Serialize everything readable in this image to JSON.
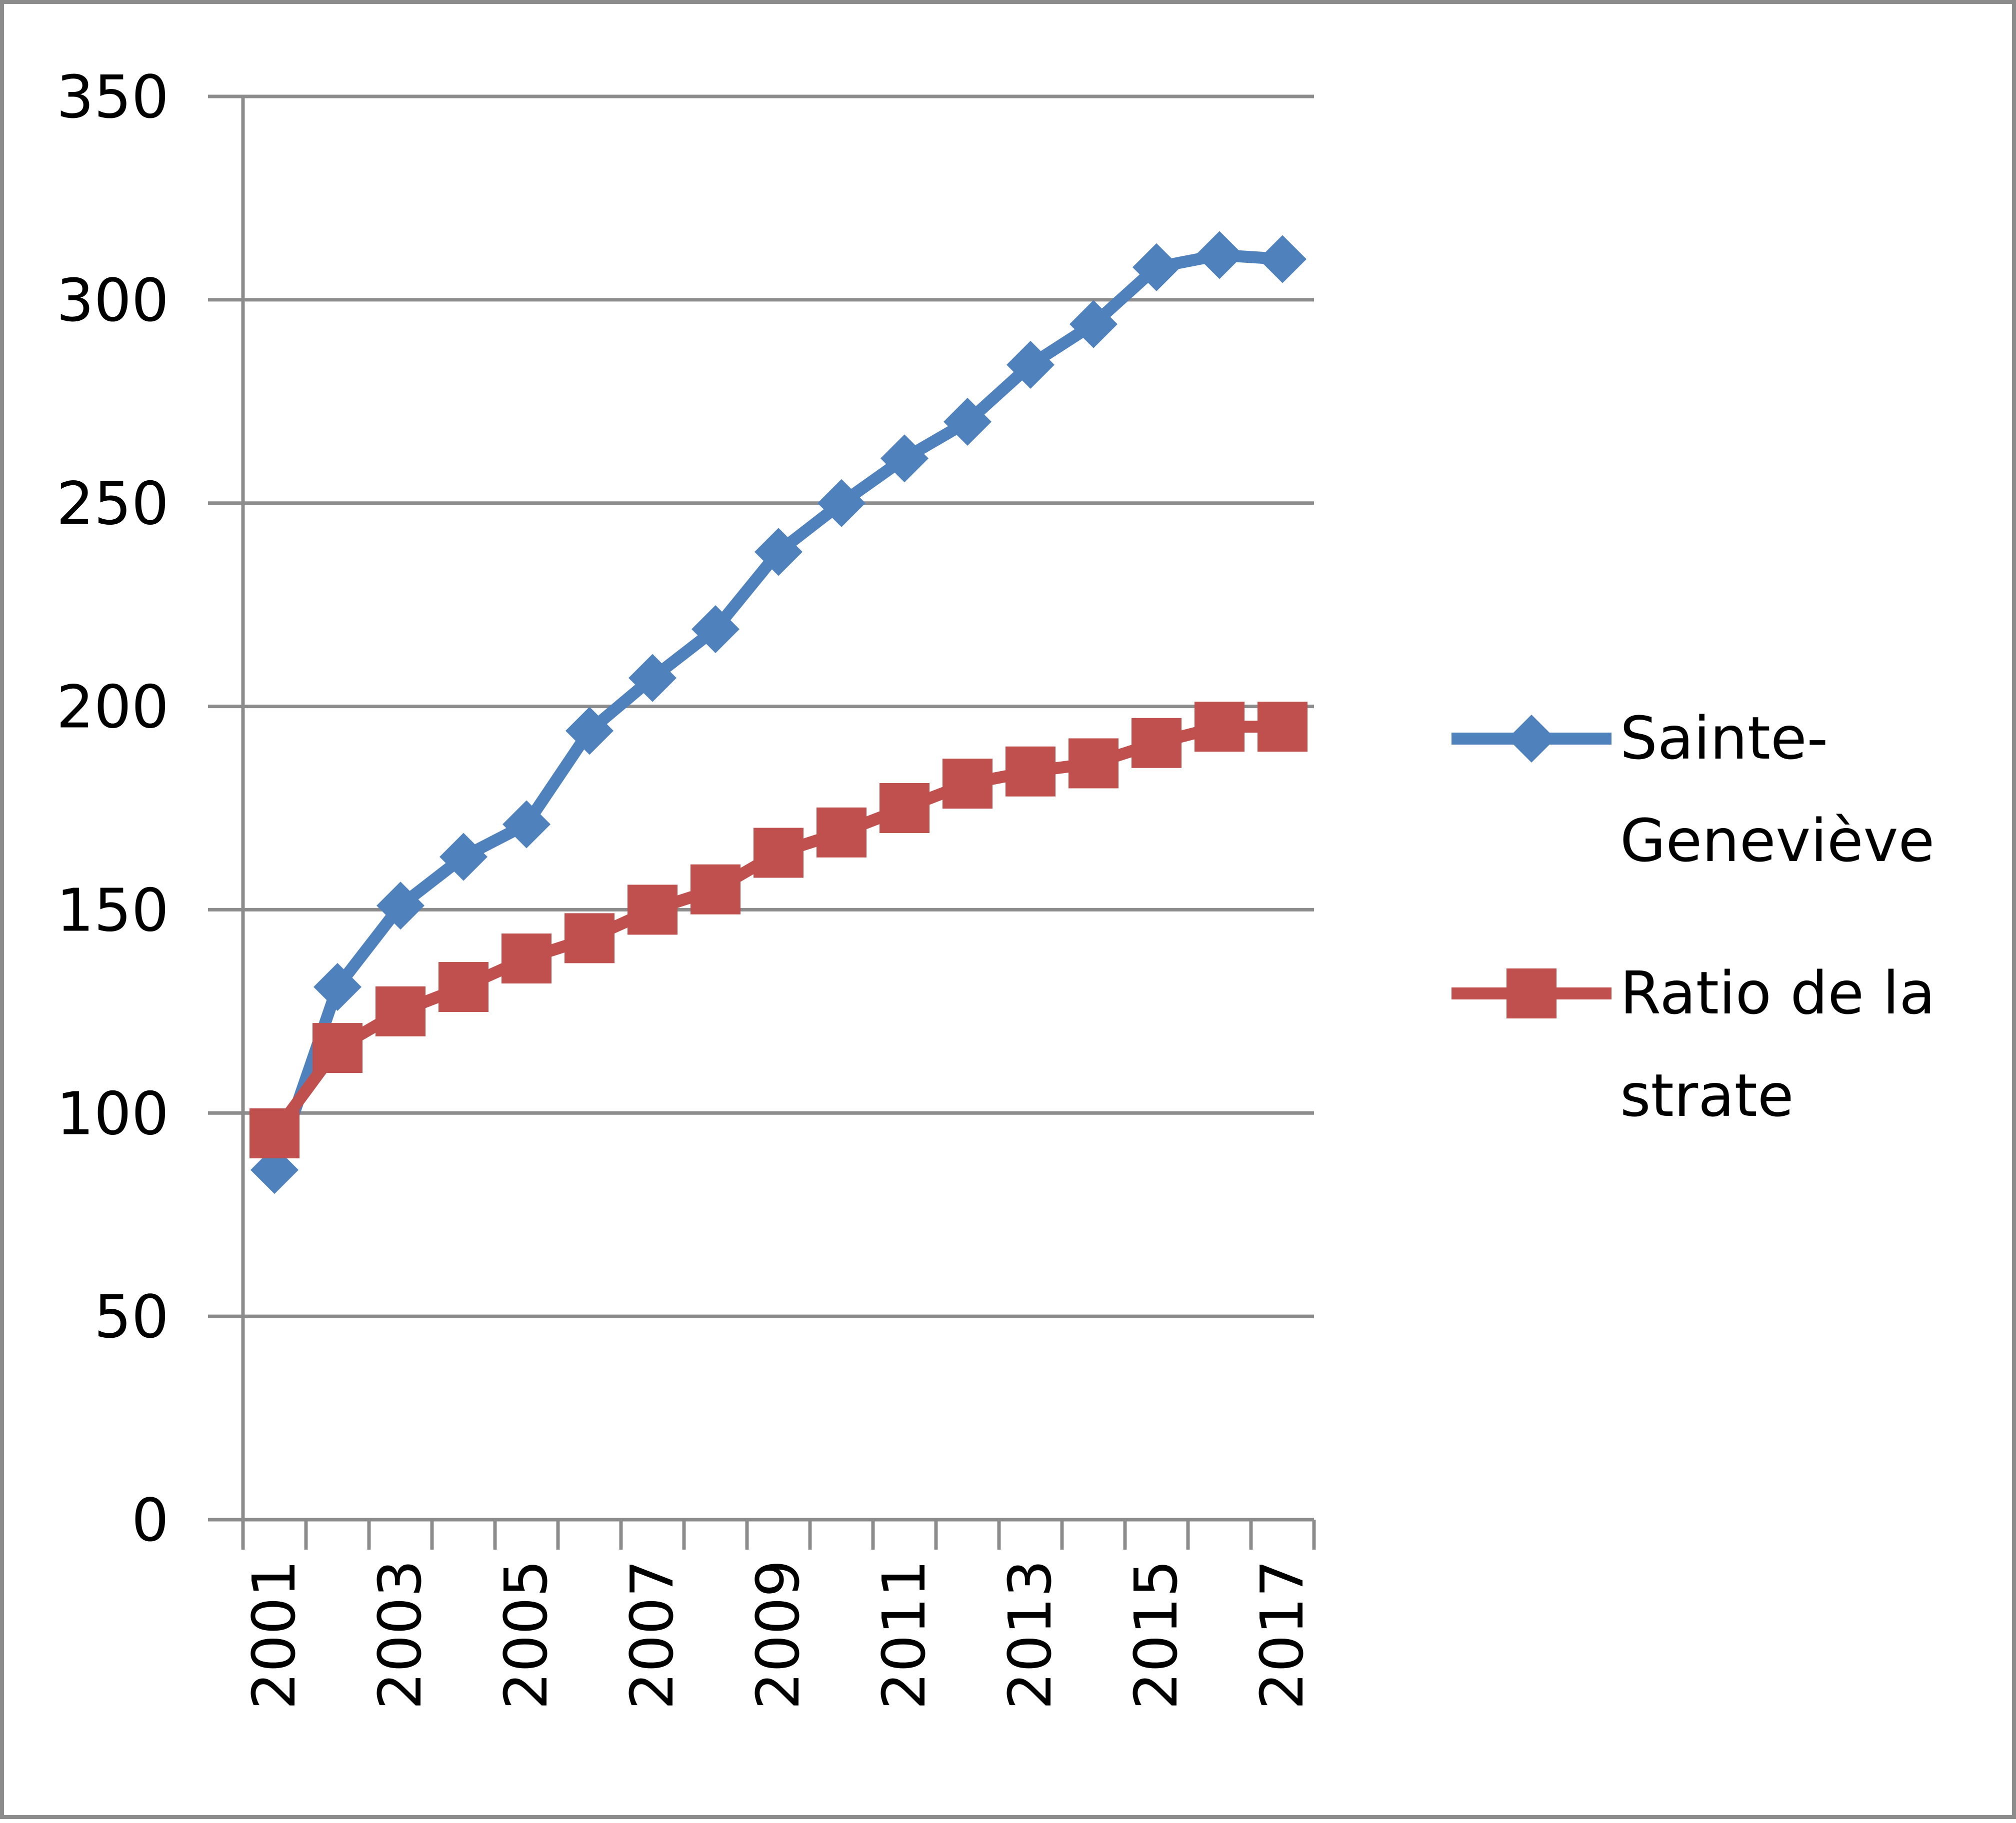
{
  "chart_data": {
    "type": "line",
    "title": "",
    "xlabel": "",
    "ylabel": "",
    "x": [
      2001,
      2002,
      2003,
      2004,
      2005,
      2006,
      2007,
      2008,
      2009,
      2010,
      2011,
      2012,
      2013,
      2014,
      2015,
      2016,
      2017
    ],
    "x_tick_labels": [
      "2001",
      "2003",
      "2005",
      "2007",
      "2009",
      "2011",
      "2013",
      "2015",
      "2017"
    ],
    "y_ticks": [
      "0",
      "50",
      "100",
      "150",
      "200",
      "250",
      "300",
      "350"
    ],
    "ylim": [
      0,
      350
    ],
    "grid": true,
    "legend_position": "right",
    "series": [
      {
        "name": "Sainte-Geneviève",
        "name_lines": [
          "Sainte-",
          "Geneviève"
        ],
        "color": "#4f81bd",
        "marker": "diamond",
        "values": [
          86,
          131,
          151,
          163,
          171,
          194,
          207,
          219,
          238,
          250,
          261,
          270,
          284,
          294,
          308,
          311,
          310
        ]
      },
      {
        "name": "Ratio de la strate",
        "name_lines": [
          "Ratio de la",
          "strate"
        ],
        "color": "#c0504d",
        "marker": "square",
        "values": [
          95,
          116,
          125,
          131,
          138,
          143,
          150,
          155,
          164,
          169,
          175,
          181,
          184,
          186,
          191,
          195,
          195
        ]
      }
    ]
  }
}
